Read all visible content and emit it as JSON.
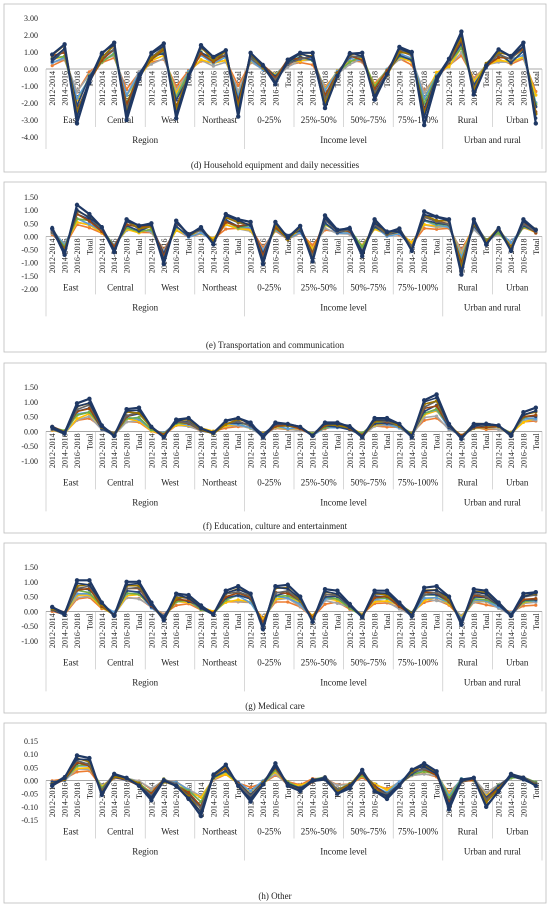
{
  "series_colors": [
    "#4472C4",
    "#ED7D31",
    "#A5A5A5",
    "#FFC000",
    "#5B9BD5",
    "#70AD47",
    "#264478",
    "#9E480E",
    "#636363",
    "#997300",
    "#1F3864"
  ],
  "chart_data": [
    {
      "type": "line",
      "caption": "(d) Household equipment and daily necessities",
      "ylim": [
        -4,
        3
      ],
      "yticks": [
        3.0,
        2.0,
        1.0,
        0.0,
        -1.0,
        -2.0,
        -3.0,
        -4.0
      ],
      "group_labels": [
        "East",
        "Central",
        "West",
        "Northeast",
        "0-25%",
        "25%-50%",
        "50%-75%",
        "75%-100%",
        "Rural",
        "Urban"
      ],
      "category_labels": [
        "2012-2014",
        "2014-2016",
        "2016-2018",
        "Total"
      ],
      "supergroups": [
        "Region",
        "Income level",
        "Urban and rural"
      ],
      "emphasis_series": [
        0.85,
        1.45,
        -3.2,
        -0.8,
        0.9,
        1.55,
        -3.0,
        -0.6,
        0.95,
        1.5,
        -2.9,
        -0.5,
        1.4,
        0.7,
        1.1,
        -2.8,
        0.95,
        0.2,
        -0.9,
        0.55,
        0.95,
        0.95,
        -2.3,
        -0.4,
        0.9,
        0.95,
        -1.8,
        -0.3,
        1.3,
        1.0,
        -3.3,
        -0.7,
        0.6,
        2.2,
        -1.5,
        0.2,
        1.15,
        0.75,
        1.55,
        -3.2,
        -0.9
      ]
    },
    {
      "type": "line",
      "caption": "(e) Transportation and communication",
      "ylim": [
        -2,
        1.5
      ],
      "yticks": [
        1.5,
        1.0,
        0.5,
        0.0,
        -0.5,
        -1.0,
        -1.5,
        -2.0
      ],
      "group_labels": [
        "East",
        "Central",
        "West",
        "Northeast",
        "0-25%",
        "25%-50%",
        "50%-75%",
        "75%-100%",
        "Rural",
        "Urban"
      ],
      "category_labels": [
        "2012-2014",
        "2014-2016",
        "2016-2018",
        "Total"
      ],
      "supergroups": [
        "Region",
        "Income level",
        "Urban and rural"
      ],
      "emphasis_series": [
        0.3,
        -0.7,
        1.2,
        0.85,
        0.35,
        -0.6,
        0.65,
        0.4,
        0.5,
        -1.05,
        0.6,
        0.05,
        0.35,
        -0.3,
        0.85,
        0.65,
        0.55,
        -1.05,
        0.55,
        -0.05,
        0.4,
        -0.95,
        0.8,
        0.25,
        0.3,
        -0.75,
        0.65,
        0.15,
        0.3,
        -0.55,
        0.95,
        0.75,
        0.65,
        -1.45,
        0.65,
        -0.3,
        0.3,
        -0.55,
        0.65,
        0.25,
        0.2
      ]
    },
    {
      "type": "line",
      "caption": "(f) Education, culture and entertainment",
      "ylim": [
        -1,
        1.5
      ],
      "yticks": [
        1.5,
        1.0,
        0.5,
        0.0,
        -0.5,
        -1.0
      ],
      "group_labels": [
        "East",
        "Central",
        "West",
        "Northeast",
        "0-25%",
        "25%-50%",
        "50%-75%",
        "75%-100%",
        "Rural",
        "Urban"
      ],
      "category_labels": [
        "2012-2014",
        "2014-2016",
        "2016-2018",
        "Total"
      ],
      "supergroups": [
        "Region",
        "Income level",
        "Urban and rural"
      ],
      "emphasis_series": [
        0.15,
        -0.05,
        0.95,
        1.1,
        0.2,
        -0.15,
        0.75,
        0.8,
        0.15,
        -0.2,
        0.4,
        0.45,
        0.1,
        -0.05,
        0.35,
        0.45,
        0.3,
        -0.2,
        0.3,
        0.25,
        0.15,
        -0.15,
        0.3,
        0.3,
        0.15,
        -0.2,
        0.45,
        0.45,
        0.25,
        -0.2,
        1.05,
        1.25,
        0.25,
        -0.25,
        0.25,
        0.25,
        0.2,
        -0.15,
        0.65,
        0.8,
        0.1
      ]
    },
    {
      "type": "line",
      "caption": "(g) Medical care",
      "ylim": [
        -1,
        1.5
      ],
      "yticks": [
        1.5,
        1.0,
        0.5,
        0.0,
        -0.5,
        -1.0
      ],
      "group_labels": [
        "East",
        "Central",
        "West",
        "Northeast",
        "0-25%",
        "25%-50%",
        "50%-75%",
        "75%-100%",
        "Rural",
        "Urban"
      ],
      "category_labels": [
        "2012-2014",
        "2014-2016",
        "2016-2018",
        "Total"
      ],
      "supergroups": [
        "Region",
        "Income level",
        "Urban and rural"
      ],
      "emphasis_series": [
        0.15,
        -0.1,
        1.05,
        1.05,
        0.3,
        -0.15,
        1.0,
        1.0,
        0.3,
        -0.3,
        0.6,
        0.55,
        0.2,
        -0.1,
        0.7,
        0.85,
        0.6,
        -0.6,
        0.85,
        0.9,
        0.5,
        -0.35,
        0.75,
        0.7,
        0.25,
        -0.2,
        0.7,
        0.7,
        0.3,
        -0.15,
        0.8,
        0.85,
        0.5,
        -0.45,
        0.75,
        0.7,
        0.3,
        -0.15,
        0.6,
        0.65,
        0.2
      ]
    },
    {
      "type": "line",
      "caption": "(h) Other",
      "ylim": [
        -0.15,
        0.15
      ],
      "yticks": [
        0.15,
        0.1,
        0.05,
        0.0,
        -0.05,
        -0.1,
        -0.15
      ],
      "group_labels": [
        "East",
        "Central",
        "West",
        "Northeast",
        "0-25%",
        "25%-50%",
        "50%-75%",
        "75%-100%",
        "Rural",
        "Urban"
      ],
      "category_labels": [
        "2012-2014",
        "2014-2016",
        "2016-2018",
        "Total"
      ],
      "supergroups": [
        "Region",
        "Income level",
        "Urban and rural"
      ],
      "emphasis_series": [
        -0.02,
        0.01,
        0.095,
        0.085,
        -0.055,
        0.025,
        0.01,
        -0.02,
        -0.075,
        0.0,
        -0.02,
        -0.07,
        -0.135,
        0.02,
        0.06,
        -0.02,
        -0.08,
        -0.015,
        0.065,
        -0.02,
        -0.04,
        0.0,
        0.01,
        -0.05,
        -0.03,
        0.04,
        -0.04,
        -0.07,
        -0.02,
        0.04,
        0.065,
        0.035,
        -0.11,
        0.0,
        0.01,
        -0.1,
        -0.04,
        0.025,
        0.01,
        -0.02,
        -0.01
      ]
    }
  ]
}
